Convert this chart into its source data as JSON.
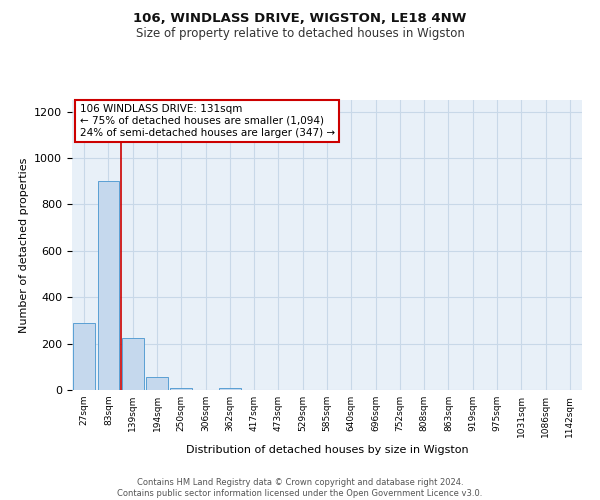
{
  "title": "106, WINDLASS DRIVE, WIGSTON, LE18 4NW",
  "subtitle": "Size of property relative to detached houses in Wigston",
  "xlabel": "Distribution of detached houses by size in Wigston",
  "ylabel": "Number of detached properties",
  "bin_labels": [
    "27sqm",
    "83sqm",
    "139sqm",
    "194sqm",
    "250sqm",
    "306sqm",
    "362sqm",
    "417sqm",
    "473sqm",
    "529sqm",
    "585sqm",
    "640sqm",
    "696sqm",
    "752sqm",
    "808sqm",
    "863sqm",
    "919sqm",
    "975sqm",
    "1031sqm",
    "1086sqm",
    "1142sqm"
  ],
  "bar_heights": [
    290,
    900,
    225,
    55,
    10,
    0,
    10,
    0,
    0,
    0,
    0,
    0,
    0,
    0,
    0,
    0,
    0,
    0,
    0,
    0,
    0
  ],
  "bar_color": "#c5d8ed",
  "bar_edge_color": "#5a9fd4",
  "annotation_text_line1": "106 WINDLASS DRIVE: 131sqm",
  "annotation_text_line2": "← 75% of detached houses are smaller (1,094)",
  "annotation_text_line3": "24% of semi-detached houses are larger (347) →",
  "annotation_box_facecolor": "#ffffff",
  "annotation_box_edgecolor": "#cc0000",
  "red_line_color": "#cc0000",
  "ylim": [
    0,
    1250
  ],
  "yticks": [
    0,
    200,
    400,
    600,
    800,
    1000,
    1200
  ],
  "grid_color": "#c8d8e8",
  "bg_color": "#e8f0f8",
  "footer_line1": "Contains HM Land Registry data © Crown copyright and database right 2024.",
  "footer_line2": "Contains public sector information licensed under the Open Government Licence v3.0."
}
